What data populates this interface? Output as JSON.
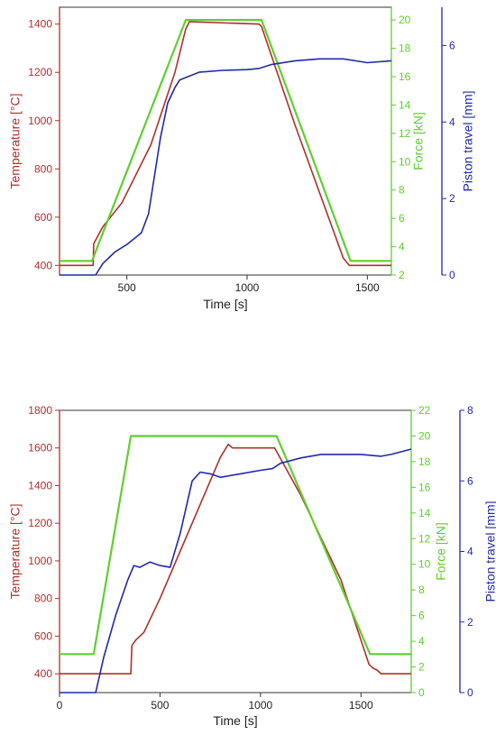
{
  "colors": {
    "temperature": "#b0302a",
    "force": "#5fcf2e",
    "piston": "#1f2aa8",
    "axis": "#222222"
  },
  "chart_data": [
    {
      "type": "line",
      "xlabel": "Time [s]",
      "xlim": [
        220,
        1600
      ],
      "xticks": [
        500,
        1000,
        1500
      ],
      "axes": [
        {
          "label": "Temperature [°C]",
          "color": "#b0302a",
          "lim": [
            360,
            1470
          ],
          "ticks": [
            400,
            600,
            800,
            1000,
            1200,
            1400
          ]
        },
        {
          "label": "Force [kN]",
          "color": "#5fcf2e",
          "lim": [
            2,
            20.9
          ],
          "ticks": [
            2,
            4,
            6,
            8,
            10,
            12,
            14,
            16,
            18,
            20
          ]
        },
        {
          "label": "Piston travel [mm]",
          "color": "#1f2aa8",
          "lim": [
            0,
            7
          ],
          "ticks": [
            0,
            2,
            4,
            6
          ]
        }
      ],
      "series": [
        {
          "axis": 0,
          "color": "#b0302a",
          "x": [
            220,
            360,
            362,
            400,
            480,
            600,
            700,
            745,
            760,
            1050,
            1060,
            1200,
            1400,
            1425,
            1600
          ],
          "y": [
            400,
            400,
            490,
            560,
            660,
            900,
            1200,
            1380,
            1410,
            1400,
            1390,
            980,
            430,
            400,
            400
          ]
        },
        {
          "axis": 1,
          "color": "#5fcf2e",
          "x": [
            220,
            355,
            745,
            1060,
            1430,
            1600
          ],
          "y": [
            3,
            3,
            20,
            20,
            3,
            3
          ]
        },
        {
          "axis": 2,
          "color": "#1f2aa8",
          "x": [
            220,
            370,
            400,
            450,
            500,
            560,
            590,
            610,
            640,
            670,
            700,
            720,
            760,
            800,
            900,
            1000,
            1050,
            1100,
            1200,
            1300,
            1400,
            1500,
            1600
          ],
          "y": [
            0,
            0,
            0.3,
            0.6,
            0.8,
            1.1,
            1.6,
            2.4,
            3.6,
            4.5,
            4.9,
            5.1,
            5.2,
            5.3,
            5.35,
            5.37,
            5.4,
            5.5,
            5.6,
            5.65,
            5.65,
            5.55,
            5.6
          ]
        }
      ]
    },
    {
      "type": "line",
      "xlabel": "Time [s]",
      "xlim": [
        0,
        1750
      ],
      "xticks": [
        0,
        500,
        1000,
        1500
      ],
      "axes": [
        {
          "label": "Temperature [°C]",
          "color": "#b0302a",
          "lim": [
            300,
            1800
          ],
          "ticks": [
            400,
            600,
            800,
            1000,
            1200,
            1400,
            1600,
            1800
          ]
        },
        {
          "label": "Force [kN]",
          "color": "#5fcf2e",
          "lim": [
            0,
            22
          ],
          "ticks": [
            0,
            2,
            4,
            6,
            8,
            10,
            12,
            14,
            16,
            18,
            20,
            22
          ]
        },
        {
          "label": "Piston travel [mm]",
          "color": "#1f2aa8",
          "lim": [
            0,
            8
          ],
          "ticks": [
            0,
            2,
            4,
            6,
            8
          ]
        }
      ],
      "series": [
        {
          "axis": 0,
          "color": "#b0302a",
          "x": [
            0,
            355,
            360,
            380,
            420,
            500,
            600,
            700,
            800,
            840,
            860,
            1070,
            1200,
            1400,
            1540,
            1560,
            1580,
            1600,
            1750
          ],
          "y": [
            400,
            400,
            550,
            580,
            620,
            800,
            1050,
            1300,
            1550,
            1620,
            1600,
            1600,
            1350,
            900,
            450,
            430,
            420,
            400,
            400
          ]
        },
        {
          "axis": 1,
          "color": "#5fcf2e",
          "x": [
            0,
            170,
            355,
            1080,
            1545,
            1750
          ],
          "y": [
            3,
            3,
            20,
            20,
            3,
            3
          ]
        },
        {
          "axis": 2,
          "color": "#1f2aa8",
          "x": [
            0,
            180,
            220,
            280,
            340,
            370,
            400,
            450,
            500,
            550,
            600,
            660,
            700,
            750,
            800,
            900,
            1000,
            1060,
            1100,
            1200,
            1300,
            1400,
            1500,
            1600,
            1650,
            1750
          ],
          "y": [
            0,
            0,
            1.0,
            2.2,
            3.2,
            3.6,
            3.55,
            3.7,
            3.6,
            3.55,
            4.5,
            6.0,
            6.25,
            6.2,
            6.1,
            6.2,
            6.3,
            6.35,
            6.5,
            6.65,
            6.75,
            6.75,
            6.75,
            6.7,
            6.75,
            6.9
          ]
        }
      ]
    }
  ]
}
